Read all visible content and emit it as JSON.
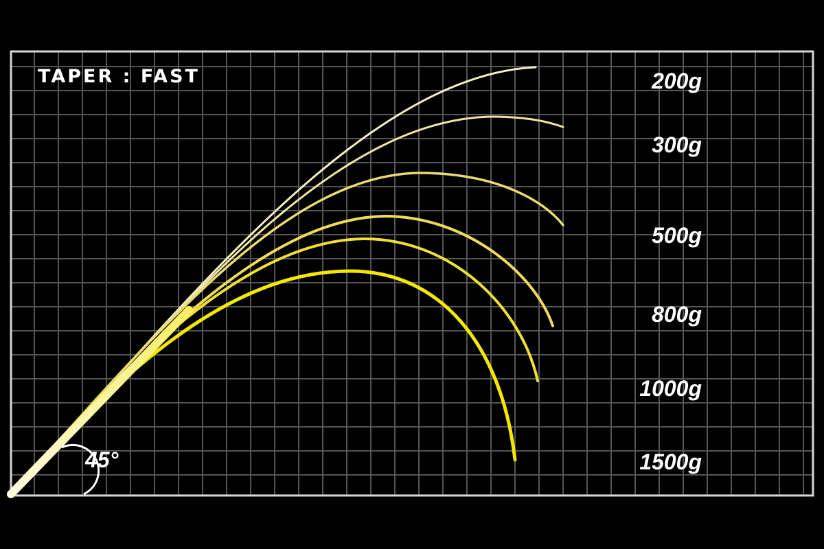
{
  "title": "TAPER : FAST",
  "angle_label": "45°",
  "colors": {
    "background": "#000000",
    "grid": "#5a5a5a",
    "frame": "#d8d8d8",
    "light_curve": "#f6f1c8",
    "heavy_curve": "#f5e800"
  },
  "loads": [
    {
      "label": "200g",
      "color": "#f4efc4"
    },
    {
      "label": "300g",
      "color": "#eee4a4"
    },
    {
      "label": "500g",
      "color": "#e9da74"
    },
    {
      "label": "800g",
      "color": "#eedc58"
    },
    {
      "label": "1000g",
      "color": "#f0e034"
    },
    {
      "label": "1500g",
      "color": "#f5e800"
    }
  ]
}
